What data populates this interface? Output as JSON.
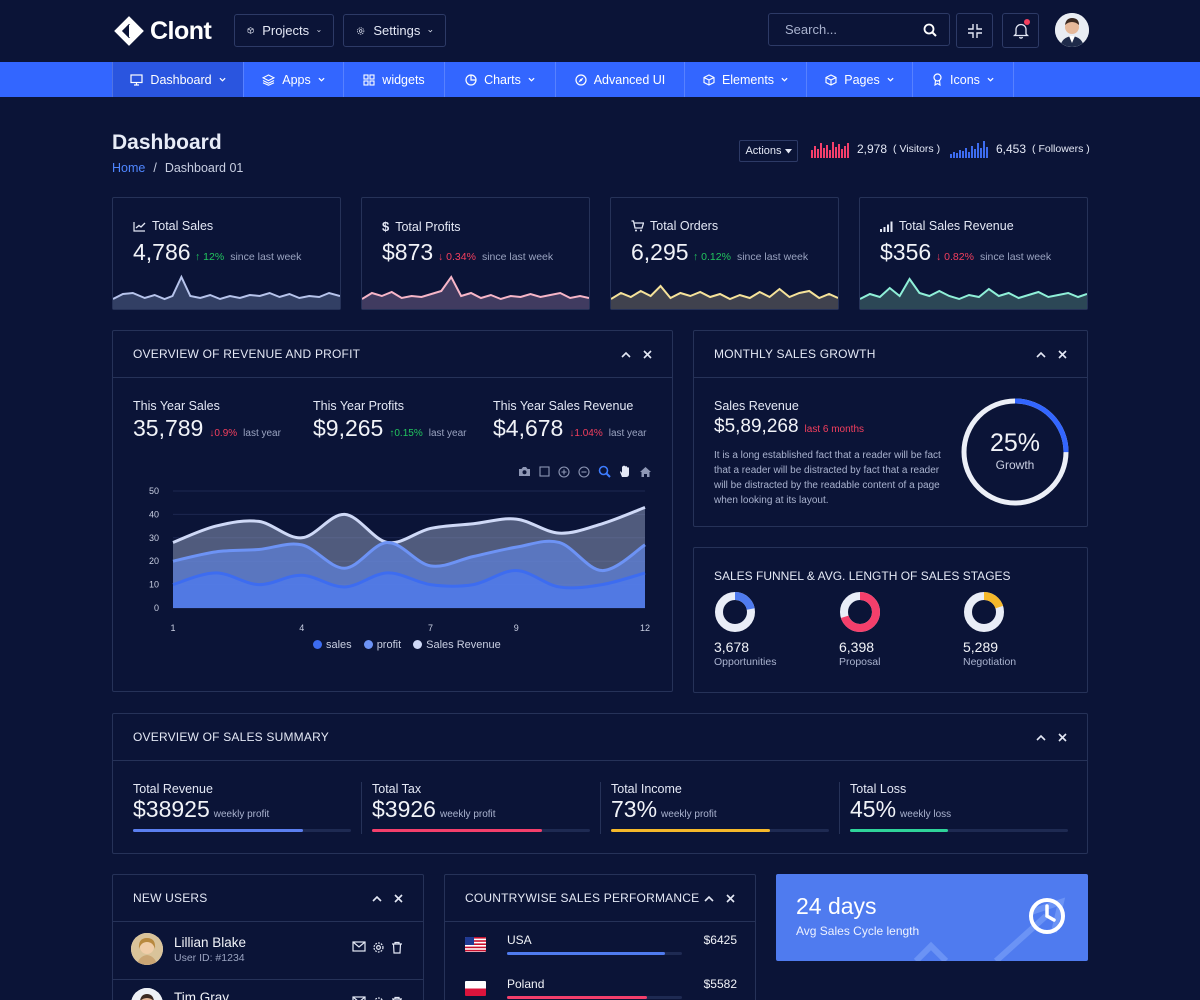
{
  "app": {
    "name": "Clont"
  },
  "header": {
    "projects_label": "Projects",
    "settings_label": "Settings",
    "search_placeholder": "Search..."
  },
  "nav": {
    "items": [
      {
        "label": "Dashboard",
        "icon": "monitor-icon",
        "dropdown": true
      },
      {
        "label": "Apps",
        "icon": "layers-icon",
        "dropdown": true
      },
      {
        "label": "widgets",
        "icon": "grid-icon",
        "dropdown": false
      },
      {
        "label": "Charts",
        "icon": "pie-chart-icon",
        "dropdown": true
      },
      {
        "label": "Advanced UI",
        "icon": "compass-icon",
        "dropdown": false
      },
      {
        "label": "Elements",
        "icon": "box-icon",
        "dropdown": true
      },
      {
        "label": "Pages",
        "icon": "cube-icon",
        "dropdown": true
      },
      {
        "label": "Icons",
        "icon": "badge-icon",
        "dropdown": true
      }
    ]
  },
  "page": {
    "title": "Dashboard",
    "breadcrumb_home": "Home",
    "breadcrumb_sep": "/",
    "breadcrumb_current": "Dashboard 01",
    "actions_label": "Actions",
    "visitors_value": "2,978",
    "visitors_label": "( Visitors )",
    "followers_value": "6,453",
    "followers_label": "( Followers )"
  },
  "kpis": [
    {
      "title": "Total Sales",
      "icon": "trend-line-icon",
      "value": "4,786",
      "direction": "up",
      "change": "12%",
      "since": "since last week",
      "color": "#b7c4ec"
    },
    {
      "title": "Total Profits",
      "icon": "dollar-icon",
      "value": "$873",
      "direction": "down",
      "change": "0.34%",
      "since": "since last week",
      "color": "#f7b6c8"
    },
    {
      "title": "Total Orders",
      "icon": "cart-icon",
      "value": "6,295",
      "direction": "up",
      "change": "0.12%",
      "since": "since last week",
      "color": "#f6e39a"
    },
    {
      "title": "Total Sales Revenue",
      "icon": "signal-bars-icon",
      "value": "$356",
      "direction": "down",
      "change": "0.82%",
      "since": "since last week",
      "color": "#8ff0d8"
    }
  ],
  "overview": {
    "title": "OVERVIEW OF REVENUE AND PROFIT",
    "stats": [
      {
        "label": "This Year Sales",
        "value": "35,789",
        "direction": "down",
        "change": "0.9%",
        "suffix": "last year"
      },
      {
        "label": "This Year Profits",
        "value": "$9,265",
        "direction": "up",
        "change": "0.15%",
        "suffix": "last year"
      },
      {
        "label": "This Year Sales Revenue",
        "value": "$4,678",
        "direction": "down",
        "change": "1.04%",
        "suffix": "last year"
      }
    ]
  },
  "chart_data": {
    "type": "area",
    "x": [
      1,
      2,
      3,
      4,
      5,
      6,
      7,
      8,
      9,
      10,
      11,
      12
    ],
    "x_ticks": [
      "1",
      "4",
      "7",
      "9",
      "12"
    ],
    "y_ticks": [
      "0",
      "10",
      "20",
      "30",
      "40",
      "50"
    ],
    "ylim": [
      0,
      50
    ],
    "series": [
      {
        "name": "sales",
        "color": "#3d6cf0",
        "values": [
          10,
          15,
          10,
          14,
          9,
          15,
          10,
          10,
          16,
          9,
          10,
          15
        ]
      },
      {
        "name": "profit",
        "color": "#6d93f5",
        "values": [
          20,
          24,
          25,
          27,
          17,
          28,
          18,
          22,
          26,
          28,
          16,
          27
        ]
      },
      {
        "name": "Sales Revenue",
        "color": "#cfd9f7",
        "values": [
          28,
          35,
          37,
          30,
          40,
          28,
          34,
          36,
          38,
          32,
          36,
          43
        ]
      }
    ],
    "grid": true,
    "legend": "bottom-center"
  },
  "monthly_growth": {
    "title": "MONTHLY SALES GROWTH",
    "label": "Sales Revenue",
    "value": "$5,89,268",
    "period": "last 6 months",
    "description": "It is a long established fact that a reader will be fact that a reader will be distracted by fact that a reader will be distracted by the readable content of a page when looking at its layout.",
    "growth_pct": "25%",
    "growth_label": "Growth",
    "ring_fraction": 0.25
  },
  "funnel": {
    "title": "SALES FUNNEL & AVG. LENGTH OF SALES STAGES",
    "items": [
      {
        "value": "3,678",
        "label": "Opportunities",
        "color": "#4f7bef",
        "fraction": 0.22
      },
      {
        "value": "6,398",
        "label": "Proposal",
        "color": "#f43f6b",
        "fraction": 0.7
      },
      {
        "value": "5,289",
        "label": "Negotiation",
        "color": "#f5b82a",
        "fraction": 0.2
      }
    ]
  },
  "summary": {
    "title": "OVERVIEW OF SALES SUMMARY",
    "items": [
      {
        "label": "Total Revenue",
        "value": "$38925",
        "sub": "weekly profit",
        "color": "#5b7ff0",
        "progress": 0.78
      },
      {
        "label": "Total Tax",
        "value": "$3926",
        "sub": "weekly profit",
        "color": "#f43f6b",
        "progress": 0.78
      },
      {
        "label": "Total Income",
        "value": "73%",
        "sub": "weekly profit",
        "color": "#f5b82a",
        "progress": 0.73
      },
      {
        "label": "Total Loss",
        "value": "45%",
        "sub": "weekly loss",
        "color": "#2fd49a",
        "progress": 0.45
      }
    ]
  },
  "new_users": {
    "title": "NEW USERS",
    "users": [
      {
        "name": "Lillian Blake",
        "id": "User ID: #1234"
      },
      {
        "name": "Tim Gray",
        "id": ""
      }
    ]
  },
  "country_sales": {
    "title": "COUNTRYWISE SALES PERFORMANCE",
    "rows": [
      {
        "country": "USA",
        "value": "$6425",
        "progress": 0.9,
        "color": "#4f7bef"
      },
      {
        "country": "Poland",
        "value": "$5582",
        "progress": 0.8,
        "color": "#f43f6b"
      }
    ]
  },
  "cycle": {
    "value": "24 days",
    "label": "Avg Sales Cycle length"
  }
}
